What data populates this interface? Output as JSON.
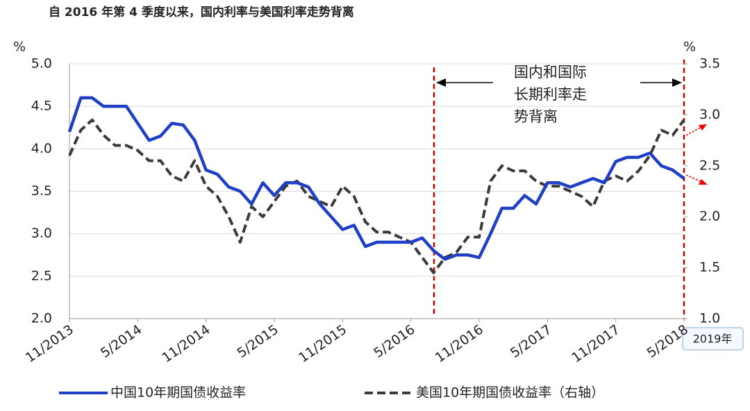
{
  "chart_data": {
    "type": "line",
    "title": "自 2016 年第 4 季度以来，国内利率与美国利率走势背离",
    "y_unit": "%",
    "y2_unit": "%",
    "categories": [
      "11/2013",
      null,
      null,
      null,
      null,
      null,
      "5/2014",
      null,
      null,
      null,
      null,
      null,
      "11/2014",
      null,
      null,
      null,
      null,
      null,
      "5/2015",
      null,
      null,
      null,
      null,
      null,
      "11/2015",
      null,
      null,
      null,
      null,
      null,
      "5/2016",
      null,
      null,
      null,
      null,
      null,
      "11/2016",
      null,
      null,
      null,
      null,
      null,
      "5/2017",
      null,
      null,
      null,
      null,
      null,
      "11/2017",
      null,
      null,
      null,
      null,
      null,
      "5/2018"
    ],
    "series": [
      {
        "name": "中国10年期国债收益率",
        "color": "#1f3fc4",
        "dash": false,
        "values": [
          4.2,
          4.6,
          4.6,
          4.5,
          4.5,
          4.5,
          4.3,
          4.1,
          4.15,
          4.3,
          4.28,
          4.1,
          3.75,
          3.7,
          3.55,
          3.5,
          3.35,
          3.6,
          3.45,
          3.6,
          3.6,
          3.55,
          3.35,
          3.2,
          3.05,
          3.1,
          2.85,
          2.9,
          2.9,
          2.9,
          2.9,
          2.95,
          2.8,
          2.7,
          2.75,
          2.75,
          2.72,
          3.0,
          3.3,
          3.3,
          3.45,
          3.35,
          3.6,
          3.6,
          3.55,
          3.6,
          3.65,
          3.6,
          3.85,
          3.9,
          3.9,
          3.95,
          3.8,
          3.75,
          3.65
        ]
      },
      {
        "name": "美国10年期国债收益率（右轴）",
        "color": "#3a3a3a",
        "dash": true,
        "axis": "y2",
        "values": [
          2.6,
          2.85,
          2.95,
          2.8,
          2.7,
          2.7,
          2.65,
          2.55,
          2.55,
          2.4,
          2.35,
          2.55,
          2.3,
          2.2,
          2.0,
          1.75,
          2.1,
          2.0,
          2.15,
          2.3,
          2.35,
          2.2,
          2.15,
          2.1,
          2.3,
          2.2,
          1.95,
          1.85,
          1.85,
          1.8,
          1.75,
          1.6,
          1.45,
          1.6,
          1.65,
          1.8,
          1.8,
          2.35,
          2.5,
          2.45,
          2.45,
          2.35,
          2.3,
          2.3,
          2.25,
          2.2,
          2.1,
          2.35,
          2.4,
          2.35,
          2.45,
          2.6,
          2.85,
          2.8,
          2.95
        ]
      }
    ],
    "ylim": [
      2.0,
      5.0
    ],
    "yticks": [
      {
        "value": 2,
        "label": "2.0"
      },
      2.5,
      {
        "value": 3,
        "label": "3.0"
      },
      3.5,
      {
        "value": 4,
        "label": "4.0"
      },
      4.5,
      {
        "value": 5,
        "label": "5.0"
      }
    ],
    "y2lim": [
      1.0,
      3.5
    ],
    "y2ticks": [
      {
        "value": 1,
        "label": "1.0"
      },
      1.5,
      {
        "value": 2,
        "label": "2.0"
      },
      2.5,
      {
        "value": 3,
        "label": "3.0"
      },
      3.5
    ],
    "grid": true,
    "annotation": [
      "国内和国际",
      "长期利率走",
      "势背离"
    ],
    "callout": "2019年"
  }
}
